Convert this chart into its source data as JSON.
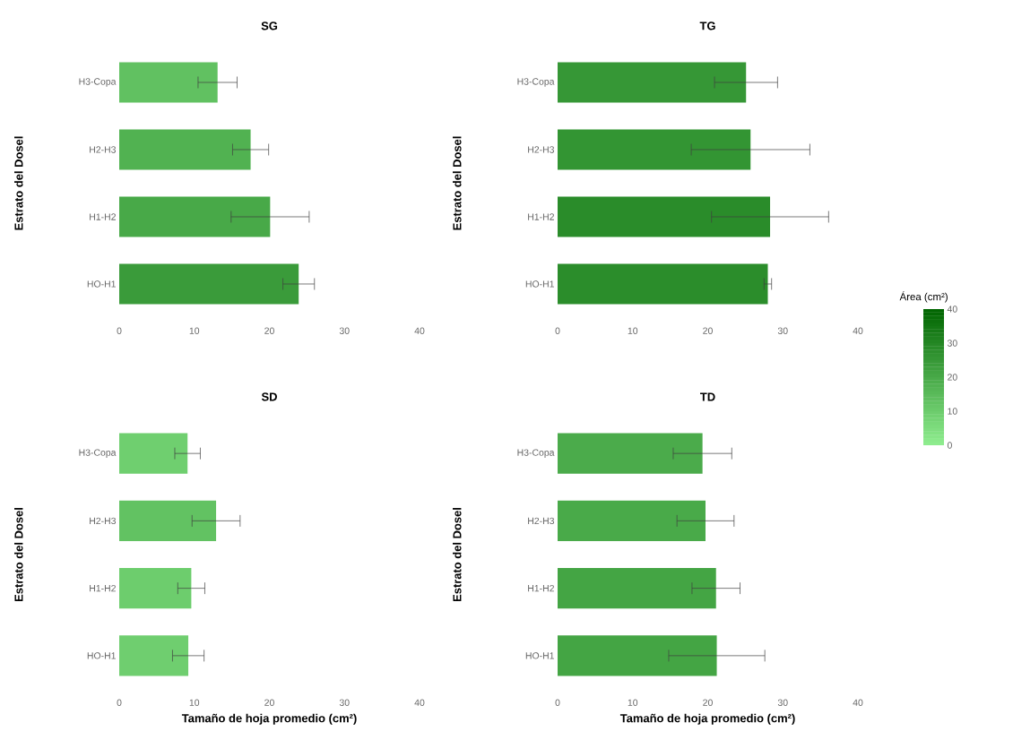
{
  "chart_data": [
    {
      "type": "bar",
      "orientation": "horizontal",
      "title": "SG",
      "ylabel": "Estrato del Dosel",
      "categories": [
        "H3-Copa",
        "H2-H3",
        "H1-H2",
        "HO-H1"
      ],
      "values": [
        13.1,
        17.5,
        20.1,
        23.9
      ],
      "errors": [
        2.6,
        2.4,
        5.2,
        2.1
      ],
      "colors": [
        "#61c161",
        "#51b251",
        "#48a948",
        "#3a9b3a"
      ],
      "xlim": [
        0,
        40
      ],
      "xticks": [
        0,
        10,
        20,
        30,
        40
      ]
    },
    {
      "type": "bar",
      "orientation": "horizontal",
      "title": "TG",
      "ylabel": "Estrato del Dosel",
      "categories": [
        "H3-Copa",
        "H2-H3",
        "H1-H2",
        "HO-H1"
      ],
      "values": [
        25.1,
        25.7,
        28.3,
        28.0
      ],
      "errors": [
        4.2,
        7.9,
        7.8,
        0.5
      ],
      "colors": [
        "#369736",
        "#339533",
        "#2a8c2a",
        "#2b8d2b"
      ],
      "xlim": [
        0,
        40
      ],
      "xticks": [
        0,
        10,
        20,
        30,
        40
      ],
      "clabel": "Área (cm²)",
      "clim": [
        0,
        40
      ],
      "cticks": [
        0,
        10,
        20,
        30,
        40
      ]
    },
    {
      "type": "bar",
      "orientation": "horizontal",
      "title": "SD",
      "xlabel": "Tamaño de hoja promedio (cm²)",
      "ylabel": "Estrato del Dosel",
      "categories": [
        "H3-Copa",
        "H2-H3",
        "H1-H2",
        "HO-H1"
      ],
      "values": [
        9.1,
        12.9,
        9.6,
        9.2
      ],
      "errors": [
        1.7,
        3.2,
        1.8,
        2.1
      ],
      "colors": [
        "#6fcf6f",
        "#62c262",
        "#6dcd6d",
        "#6fce6f"
      ],
      "xlim": [
        0,
        40
      ],
      "xticks": [
        0,
        10,
        20,
        30,
        40
      ]
    },
    {
      "type": "bar",
      "orientation": "horizontal",
      "title": "TD",
      "xlabel": "Tamaño de hoja promedio (cm²)",
      "ylabel": "Estrato del Dosel",
      "categories": [
        "H3-Copa",
        "H2-H3",
        "H1-H2",
        "HO-H1"
      ],
      "values": [
        19.3,
        19.7,
        21.1,
        21.2
      ],
      "errors": [
        3.9,
        3.8,
        3.2,
        6.4
      ],
      "colors": [
        "#4bab4b",
        "#49aa49",
        "#44a544",
        "#44a544"
      ],
      "xlim": [
        0,
        40
      ],
      "xticks": [
        0,
        10,
        20,
        30,
        40
      ]
    }
  ]
}
